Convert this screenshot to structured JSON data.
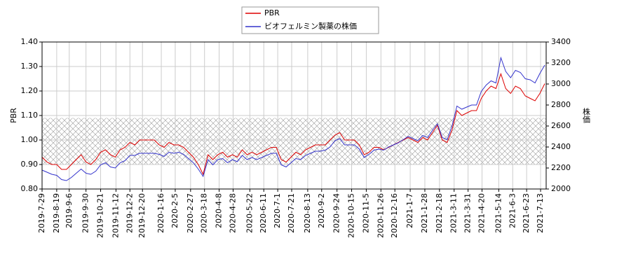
{
  "chart_data": {
    "type": "line",
    "x": [
      "2019-7-29",
      "2019-8-5",
      "2019-8-12",
      "2019-8-19",
      "2019-8-26",
      "2019-9-2",
      "2019-9-9",
      "2019-9-16",
      "2019-9-23",
      "2019-9-30",
      "2019-10-7",
      "2019-10-14",
      "2019-10-21",
      "2019-10-28",
      "2019-11-4",
      "2019-11-11",
      "2019-11-18",
      "2019-11-25",
      "2019-12-2",
      "2019-12-9",
      "2019-12-16",
      "2019-12-23",
      "2019-12-30",
      "2020-1-6",
      "2020-1-13",
      "2020-1-20",
      "2020-1-27",
      "2020-2-3",
      "2020-2-10",
      "2020-2-17",
      "2020-2-24",
      "2020-3-2",
      "2020-3-9",
      "2020-3-16",
      "2020-3-23",
      "2020-3-30",
      "2020-4-6",
      "2020-4-13",
      "2020-4-20",
      "2020-4-27",
      "2020-5-4",
      "2020-5-11",
      "2020-5-18",
      "2020-5-25",
      "2020-6-1",
      "2020-6-8",
      "2020-6-15",
      "2020-6-22",
      "2020-6-29",
      "2020-7-6",
      "2020-7-13",
      "2020-7-20",
      "2020-7-27",
      "2020-8-3",
      "2020-8-10",
      "2020-8-17",
      "2020-8-24",
      "2020-8-31",
      "2020-9-7",
      "2020-9-14",
      "2020-9-21",
      "2020-9-28",
      "2020-10-5",
      "2020-10-12",
      "2020-10-19",
      "2020-10-26",
      "2020-11-2",
      "2020-11-9",
      "2020-11-16",
      "2020-11-23",
      "2020-11-30",
      "2020-12-7",
      "2020-12-14",
      "2020-12-21",
      "2020-12-28",
      "2021-1-4",
      "2021-1-11",
      "2021-1-18",
      "2021-1-25",
      "2021-2-1",
      "2021-2-8",
      "2021-2-15",
      "2021-2-22",
      "2021-3-1",
      "2021-3-8",
      "2021-3-15",
      "2021-3-22",
      "2021-3-29",
      "2021-4-5",
      "2021-4-12",
      "2021-4-19",
      "2021-4-26",
      "2021-5-3",
      "2021-5-10",
      "2021-5-17",
      "2021-5-24",
      "2021-5-31",
      "2021-6-7",
      "2021-6-14",
      "2021-6-21",
      "2021-6-28",
      "2021-7-5",
      "2021-7-12",
      "2021-7-19"
    ],
    "series": [
      {
        "name": "PBR",
        "color": "#dd0000",
        "values": [
          0.93,
          0.91,
          0.9,
          0.9,
          0.88,
          0.88,
          0.9,
          0.92,
          0.94,
          0.91,
          0.9,
          0.92,
          0.95,
          0.96,
          0.94,
          0.93,
          0.96,
          0.97,
          0.99,
          0.98,
          1.0,
          1.0,
          1.0,
          1.0,
          0.98,
          0.97,
          0.99,
          0.98,
          0.98,
          0.97,
          0.95,
          0.93,
          0.9,
          0.86,
          0.94,
          0.92,
          0.94,
          0.95,
          0.93,
          0.94,
          0.93,
          0.96,
          0.94,
          0.95,
          0.94,
          0.95,
          0.96,
          0.97,
          0.97,
          0.92,
          0.91,
          0.93,
          0.95,
          0.94,
          0.96,
          0.97,
          0.98,
          0.98,
          0.98,
          1.0,
          1.02,
          1.03,
          1.0,
          1.0,
          1.0,
          0.98,
          0.94,
          0.95,
          0.97,
          0.97,
          0.96,
          0.97,
          0.98,
          0.99,
          1.0,
          1.01,
          1.0,
          0.99,
          1.01,
          1.0,
          1.03,
          1.06,
          1.0,
          0.99,
          1.04,
          1.12,
          1.1,
          1.11,
          1.12,
          1.12,
          1.17,
          1.2,
          1.22,
          1.21,
          1.27,
          1.21,
          1.19,
          1.22,
          1.21,
          1.18,
          1.17,
          1.16,
          1.19,
          1.23
        ]
      },
      {
        "name": "ビオフェルミン製薬の株価",
        "color": "#3333cc",
        "axis": "y2",
        "values": [
          2180,
          2160,
          2140,
          2130,
          2090,
          2080,
          2110,
          2150,
          2190,
          2150,
          2140,
          2170,
          2230,
          2250,
          2210,
          2200,
          2250,
          2270,
          2320,
          2320,
          2340,
          2340,
          2340,
          2340,
          2330,
          2310,
          2350,
          2340,
          2350,
          2330,
          2290,
          2250,
          2190,
          2120,
          2280,
          2230,
          2280,
          2290,
          2250,
          2280,
          2260,
          2320,
          2280,
          2300,
          2280,
          2300,
          2320,
          2340,
          2340,
          2230,
          2210,
          2250,
          2290,
          2280,
          2320,
          2340,
          2360,
          2360,
          2370,
          2400,
          2460,
          2480,
          2420,
          2420,
          2420,
          2380,
          2300,
          2330,
          2370,
          2380,
          2370,
          2400,
          2420,
          2440,
          2470,
          2500,
          2480,
          2460,
          2510,
          2490,
          2560,
          2620,
          2490,
          2470,
          2600,
          2790,
          2760,
          2780,
          2800,
          2800,
          2930,
          2990,
          3030,
          3010,
          3250,
          3120,
          3060,
          3130,
          3110,
          3050,
          3040,
          3010,
          3100,
          3180
        ]
      }
    ],
    "y_label": "PBR",
    "y2_label": "株価",
    "xlim": [
      "2019-7-29",
      "2021-7-21"
    ],
    "xticks": [
      "2019-7-29",
      "2019-8-19",
      "2019-9-6",
      "2019-9-30",
      "2019-10-21",
      "2019-11-12",
      "2019-12-2",
      "2019-12-20",
      "2020-1-16",
      "2020-2-5",
      "2020-2-27",
      "2020-3-18",
      "2020-4-8",
      "2020-4-28",
      "2020-5-22",
      "2020-6-11",
      "2020-7-1",
      "2020-7-21",
      "2020-8-13",
      "2020-9-2",
      "2020-9-24",
      "2020-10-15",
      "2020-11-5",
      "2020-11-26",
      "2020-12-16",
      "2021-1-7",
      "2021-1-28",
      "2021-2-18",
      "2021-3-11",
      "2021-3-31",
      "2021-4-20",
      "2021-5-14",
      "2021-6-3",
      "2021-6-23",
      "2021-7-13"
    ],
    "ylim": [
      0.8,
      1.4
    ],
    "yticks": [
      {
        "value": 0.8,
        "label": "0.80"
      },
      {
        "value": 0.9,
        "label": "0.90"
      },
      {
        "value": 1.0,
        "label": "1.00"
      },
      {
        "value": 1.1,
        "label": "1.10"
      },
      {
        "value": 1.2,
        "label": "1.20"
      },
      {
        "value": 1.3,
        "label": "1.30"
      },
      {
        "value": 1.4,
        "label": "1.40"
      }
    ],
    "y2lim": [
      2000,
      3400
    ],
    "y2ticks": [
      2000,
      2200,
      2400,
      2600,
      2800,
      3000,
      3200,
      3400
    ],
    "shaded_range": [
      0.9,
      1.09
    ],
    "grid": true,
    "legend": "top"
  }
}
